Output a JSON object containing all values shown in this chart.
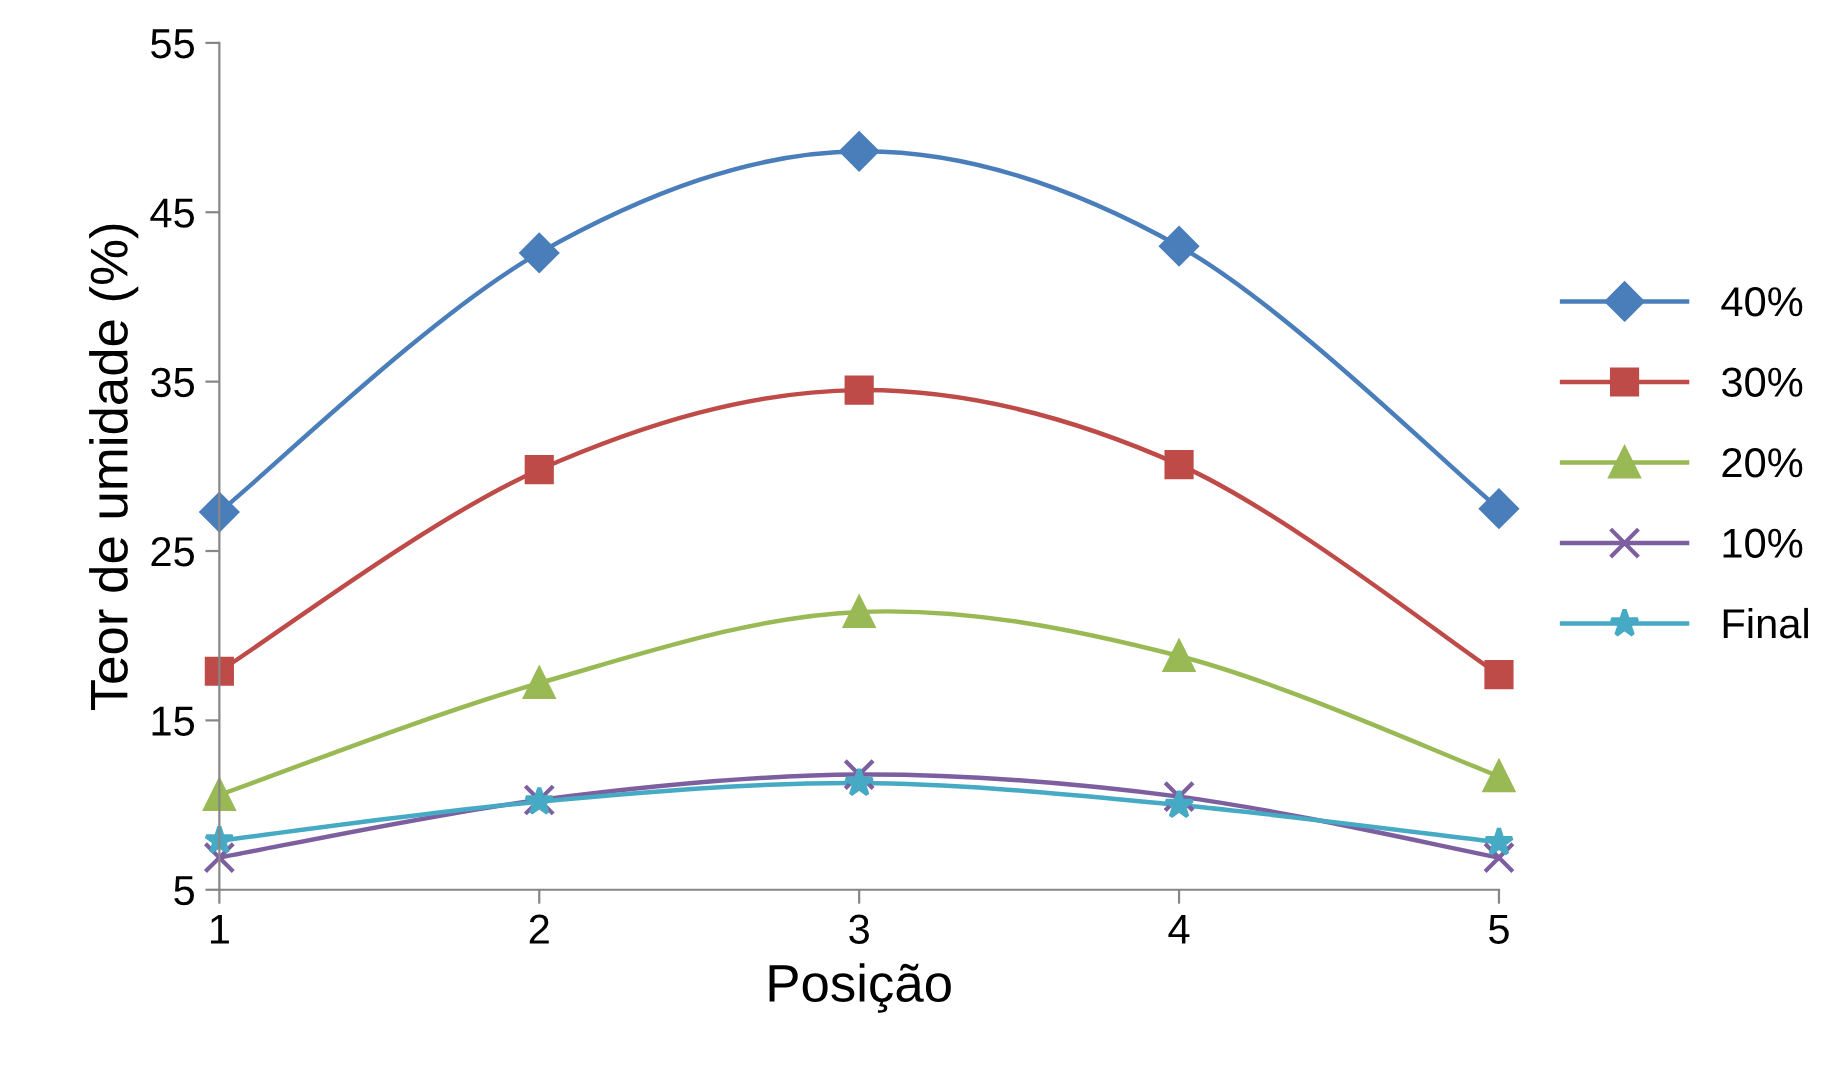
{
  "chart_data": {
    "type": "line",
    "xlabel": "Posição",
    "ylabel": "Teor de umidade (%)",
    "x": [
      1,
      2,
      3,
      4,
      5
    ],
    "xlim": [
      1,
      5
    ],
    "xticks": [
      1,
      2,
      3,
      4,
      5
    ],
    "ylim": [
      5,
      55
    ],
    "yticks": [
      5,
      15,
      25,
      35,
      45,
      55
    ],
    "grid": false,
    "legend": "right",
    "line_style": "solid",
    "series": [
      {
        "name": "40%",
        "color": "#4a7ebb",
        "marker": "diamond",
        "values": [
          27.3,
          42.6,
          48.6,
          43.0,
          27.5
        ]
      },
      {
        "name": "30%",
        "color": "#be4b48",
        "marker": "square",
        "values": [
          17.9,
          29.8,
          34.5,
          30.1,
          17.7
        ]
      },
      {
        "name": "20%",
        "color": "#98b954",
        "marker": "triangle",
        "values": [
          10.6,
          17.2,
          21.4,
          18.8,
          11.7
        ]
      },
      {
        "name": "10%",
        "color": "#7d5fa0",
        "marker": "cross",
        "values": [
          6.9,
          10.3,
          11.8,
          10.5,
          6.9
        ]
      },
      {
        "name": "Final",
        "color": "#46aac5",
        "marker": "star",
        "values": [
          7.9,
          10.2,
          11.3,
          10.0,
          7.8
        ]
      }
    ]
  }
}
